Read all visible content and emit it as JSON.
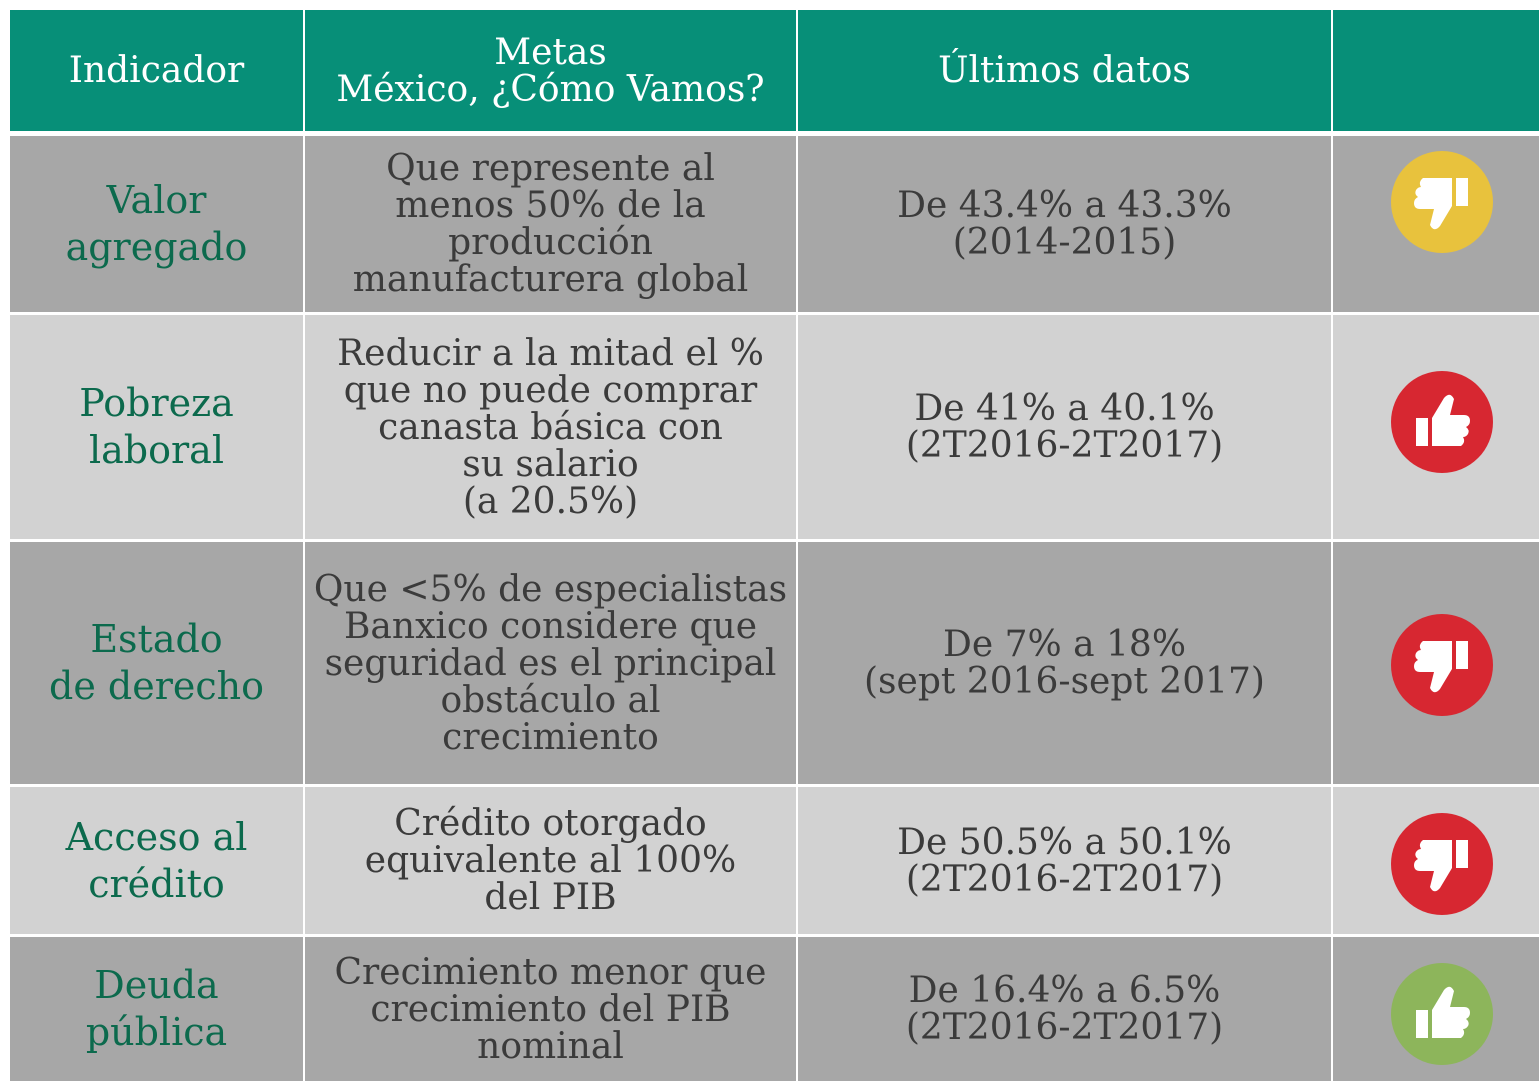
{
  "table": {
    "header": [
      [
        "Indicador"
      ],
      [
        "Metas",
        "México, ¿Cómo Vamos?"
      ],
      [
        "Últimos datos"
      ]
    ],
    "rows": [
      [
        [
          "Valor",
          "agregado"
        ],
        [
          "Que represente al",
          "menos 50% de la",
          "producción",
          "manufacturera global"
        ],
        [
          "De 43.4% a 43.3%",
          "(2014-2015)"
        ]
      ],
      [
        [
          "Pobreza",
          "laboral"
        ],
        [
          "Reducir a la mitad el %",
          "que no puede comprar",
          "canasta básica con",
          "su salario",
          "(a 20.5%)"
        ],
        [
          "De 41% a 40.1%",
          "(2T2016-2T2017)"
        ]
      ],
      [
        [
          "Estado",
          "de derecho"
        ],
        [
          "Que <5% de especialistas",
          "Banxico considere que",
          "seguridad es el principal",
          "obstáculo al",
          "crecimiento"
        ],
        [
          "De 7% a 18%",
          "(sept 2016-sept 2017)"
        ]
      ],
      [
        [
          "Acceso al",
          "crédito"
        ],
        [
          "Crédito otorgado",
          "equivalente al 100%",
          "del PIB"
        ],
        [
          "De 50.5% a 50.1%",
          "(2T2016-2T2017)"
        ]
      ],
      [
        [
          "Deuda",
          "pública"
        ],
        [
          "Crecimiento menor que",
          "crecimiento del PIB",
          "nominal"
        ],
        [
          "De 16.4% a 6.5%",
          "(2T2016-2T2017)"
        ]
      ]
    ]
  }
}
